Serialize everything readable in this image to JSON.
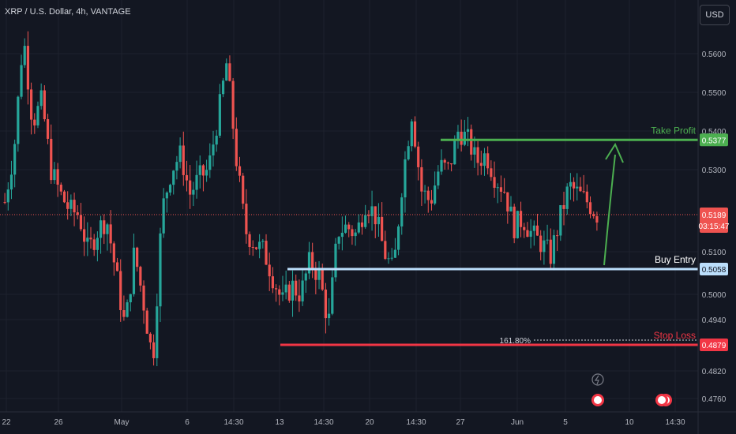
{
  "symbol_label": "XRP / U.S. Dollar, 4h, VANTAGE",
  "currency_button": "USD",
  "colors": {
    "background": "#131722",
    "up": "#26a69a",
    "down": "#ef5350",
    "take_profit": "#4caf50",
    "buy_entry": "#bbdefb",
    "stop_loss": "#f23645",
    "arrow": "#4caf50",
    "grid": "#1e222d",
    "axis_text": "#b2b5be"
  },
  "chart_data": {
    "type": "candlestick",
    "title": "",
    "xlabel": "",
    "ylabel": "",
    "ylim": [
      0.4735,
      0.573
    ],
    "y_ticks": [
      "0.5600",
      "0.5500",
      "0.5400",
      "0.5300",
      "0.5100",
      "0.5000",
      "0.4940",
      "0.4820",
      "0.4760"
    ],
    "x_ticks": [
      "22",
      "26",
      "May",
      "6",
      "14:30",
      "13",
      "14:30",
      "20",
      "14:30",
      "27",
      "Jun",
      "5",
      "10",
      "14:30"
    ],
    "current_price": "0.5189",
    "countdown": "03:15:47",
    "levels": [
      {
        "id": "take_profit",
        "label": "Take Profit",
        "price": "0.5377"
      },
      {
        "id": "buy_entry",
        "label": "Buy Entry",
        "price": "0.5058"
      },
      {
        "id": "stop_loss",
        "label": "Stop Loss",
        "price": "0.4879"
      }
    ],
    "fib_label": "161.80%",
    "price_path": [
      0.522,
      0.535,
      0.565,
      0.542,
      0.548,
      0.53,
      0.524,
      0.52,
      0.519,
      0.51,
      0.515,
      0.518,
      0.505,
      0.492,
      0.51,
      0.498,
      0.484,
      0.52,
      0.53,
      0.534,
      0.524,
      0.528,
      0.53,
      0.543,
      0.558,
      0.533,
      0.515,
      0.512,
      0.51,
      0.504,
      0.498,
      0.502,
      0.5,
      0.508,
      0.504,
      0.493,
      0.515,
      0.516,
      0.514,
      0.522,
      0.519,
      0.51,
      0.505,
      0.528,
      0.545,
      0.525,
      0.522,
      0.531,
      0.53,
      0.54,
      0.538,
      0.532,
      0.534,
      0.528,
      0.525,
      0.516,
      0.518,
      0.514,
      0.512,
      0.509,
      0.518,
      0.526,
      0.524,
      0.522,
      0.519
    ]
  }
}
